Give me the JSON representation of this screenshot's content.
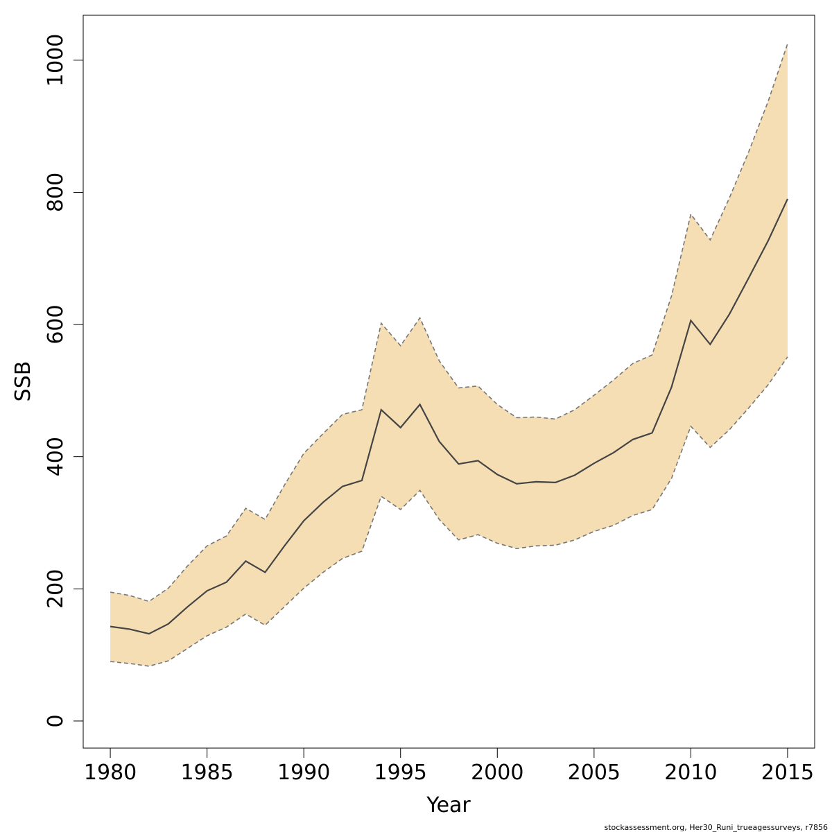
{
  "chart_data": {
    "type": "area",
    "xlabel": "Year",
    "ylabel": "SSB",
    "xlim": [
      1978.6,
      2016.4
    ],
    "ylim": [
      -41,
      1068
    ],
    "x_ticks": [
      1980,
      1985,
      1990,
      1995,
      2000,
      2005,
      2010,
      2015
    ],
    "y_ticks": [
      0,
      200,
      400,
      600,
      800,
      1000
    ],
    "footnote": "stockassessment.org, Her30_Runi_trueagessurveys, r7856",
    "colors": {
      "band": "#f5deb3",
      "line": "#444444",
      "bound": "#777777"
    },
    "x": [
      1980,
      1981,
      1982,
      1983,
      1984,
      1985,
      1986,
      1987,
      1988,
      1989,
      1990,
      1991,
      1992,
      1993,
      1994,
      1995,
      1996,
      1997,
      1998,
      1999,
      2000,
      2001,
      2002,
      2003,
      2004,
      2005,
      2006,
      2007,
      2008,
      2009,
      2010,
      2011,
      2012,
      2013,
      2014,
      2015
    ],
    "series": [
      {
        "role": "estimate",
        "values": [
          143,
          139,
          132,
          147,
          173,
          197,
          210,
          242,
          225,
          265,
          303,
          331,
          355,
          364,
          471,
          444,
          479,
          423,
          389,
          394,
          373,
          359,
          362,
          361,
          372,
          390,
          406,
          426,
          436,
          505,
          606,
          570,
          616,
          671,
          727,
          790
        ]
      },
      {
        "role": "upper",
        "values": [
          195,
          190,
          181,
          201,
          235,
          265,
          280,
          322,
          305,
          357,
          405,
          435,
          464,
          471,
          602,
          568,
          610,
          545,
          504,
          507,
          479,
          459,
          460,
          457,
          471,
          493,
          516,
          541,
          554,
          643,
          767,
          728,
          792,
          862,
          938,
          1025
        ]
      },
      {
        "role": "lower",
        "values": [
          90,
          87,
          83,
          91,
          110,
          129,
          142,
          162,
          145,
          173,
          201,
          225,
          246,
          257,
          340,
          320,
          349,
          305,
          274,
          282,
          269,
          261,
          265,
          266,
          274,
          287,
          296,
          311,
          320,
          367,
          446,
          414,
          441,
          474,
          509,
          551
        ]
      }
    ]
  }
}
